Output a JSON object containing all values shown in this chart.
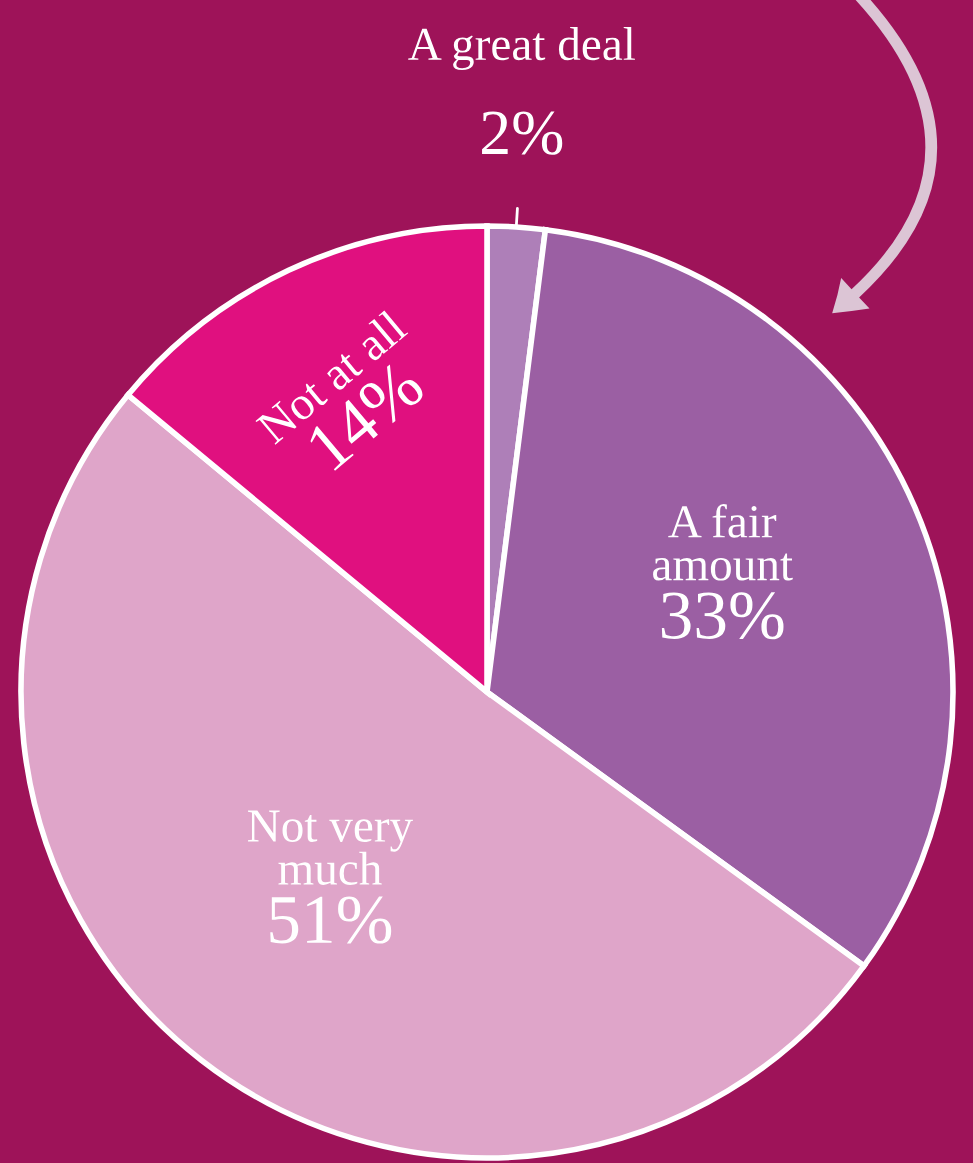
{
  "chart_data": {
    "type": "pie",
    "categories": [
      "A great deal",
      "A fair\namount",
      "Not very\nmuch",
      "Not at all"
    ],
    "values": [
      2,
      33,
      51,
      14
    ],
    "colors": [
      "#ae7fb8",
      "#9b5fa3",
      "#dfa5c9",
      "#e0107f"
    ],
    "value_labels": [
      "2%",
      "33%",
      "51%",
      "14%"
    ]
  }
}
